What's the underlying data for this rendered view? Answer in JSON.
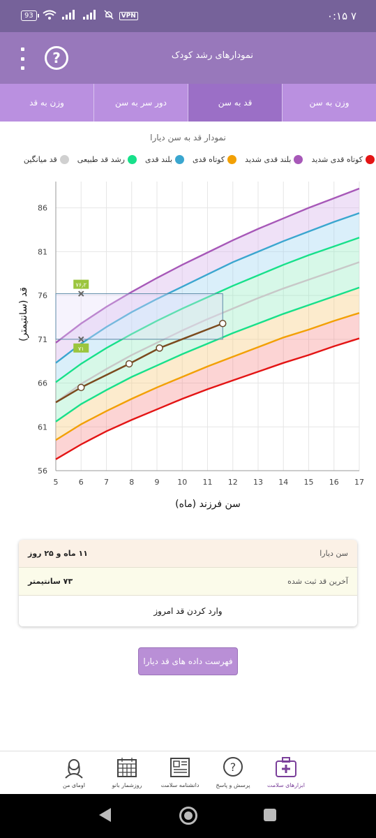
{
  "statusbar": {
    "time": "۷ ۰:۱۵",
    "battery": "93",
    "vpn": "VPN"
  },
  "appbar": {
    "title": "نمودارهای رشد کودک",
    "help_label": "?"
  },
  "tabs": [
    {
      "label": "وزن به سن"
    },
    {
      "label": "قد به سن"
    },
    {
      "label": "دور سر به سن"
    },
    {
      "label": "وزن به قد"
    }
  ],
  "chart_title": "نمودار قد به سن دیارا",
  "legend": [
    {
      "label": "کوتاه قدی شدید",
      "color": "#e31414"
    },
    {
      "label": "بلند قدی شدید",
      "color": "#a758b8"
    },
    {
      "label": "کوتاه قدی",
      "color": "#f2a004"
    },
    {
      "label": "بلند قدی",
      "color": "#3aa6cf"
    },
    {
      "label": "رشد قد طبیعی",
      "color": "#17e08a"
    },
    {
      "label": "قد میانگین",
      "color": "#d0d0d0"
    }
  ],
  "chart_data": {
    "type": "line",
    "title": "نمودار قد به سن دیارا",
    "xlabel": "سن فرزند (ماه)",
    "ylabel": "قد (سانتیمتر)",
    "xlim": [
      5,
      17
    ],
    "ylim": [
      56,
      89
    ],
    "x_ticks": [
      "5",
      "6",
      "7",
      "8",
      "9",
      "10",
      "11",
      "12",
      "13",
      "14",
      "15",
      "16",
      "17"
    ],
    "y_ticks": [
      "56",
      "61",
      "66",
      "71",
      "76",
      "81",
      "86"
    ],
    "grid": true,
    "series": [
      {
        "name": "کوتاه قدی شدید",
        "color": "#e31414",
        "x": [
          5,
          6,
          7,
          8,
          9,
          10,
          11,
          12,
          13,
          14,
          15,
          16,
          17
        ],
        "y": [
          57.3,
          59.0,
          60.5,
          61.8,
          63.0,
          64.2,
          65.3,
          66.3,
          67.3,
          68.3,
          69.2,
          70.2,
          71.1
        ]
      },
      {
        "name": "کوتاه قدی",
        "color": "#f2a004",
        "x": [
          5,
          6,
          7,
          8,
          9,
          10,
          11,
          12,
          13,
          14,
          15,
          16,
          17
        ],
        "y": [
          59.5,
          61.3,
          62.8,
          64.2,
          65.5,
          66.7,
          67.9,
          69.0,
          70.1,
          71.2,
          72.1,
          73.1,
          74.0
        ]
      },
      {
        "name": "رشد قد طبیعی",
        "color": "#17e08a",
        "x": [
          5,
          6,
          7,
          8,
          9,
          10,
          11,
          12,
          13,
          14,
          15,
          16,
          17
        ],
        "y": [
          61.6,
          63.6,
          65.2,
          66.7,
          68.0,
          69.3,
          70.5,
          71.7,
          72.8,
          73.9,
          74.9,
          75.9,
          76.9
        ]
      },
      {
        "name": "قد میانگین",
        "color": "#c8c8c8",
        "x": [
          5,
          6,
          7,
          8,
          9,
          10,
          11,
          12,
          13,
          14,
          15,
          16,
          17
        ],
        "y": [
          63.8,
          65.9,
          67.6,
          69.2,
          70.6,
          72.0,
          73.3,
          74.5,
          75.7,
          76.8,
          77.8,
          78.8,
          79.8
        ]
      },
      {
        "name": "رشد قد طبیعی",
        "color": "#17e08a",
        "x": [
          5,
          6,
          7,
          8,
          9,
          10,
          11,
          12,
          13,
          14,
          15,
          16,
          17
        ],
        "y": [
          66.1,
          68.2,
          70.0,
          71.6,
          73.1,
          74.5,
          75.8,
          77.1,
          78.3,
          79.5,
          80.6,
          81.6,
          82.6
        ]
      },
      {
        "name": "بلند قدی",
        "color": "#3aa6cf",
        "x": [
          5,
          6,
          7,
          8,
          9,
          10,
          11,
          12,
          13,
          14,
          15,
          16,
          17
        ],
        "y": [
          68.3,
          70.5,
          72.4,
          74.1,
          75.6,
          77.0,
          78.4,
          79.8,
          81.0,
          82.2,
          83.3,
          84.4,
          85.4
        ]
      },
      {
        "name": "بلند قدی شدید",
        "color": "#a758b8",
        "x": [
          5,
          6,
          7,
          8,
          9,
          10,
          11,
          12,
          13,
          14,
          15,
          16,
          17
        ],
        "y": [
          70.6,
          72.8,
          74.7,
          76.4,
          78.0,
          79.5,
          80.9,
          82.3,
          83.6,
          84.8,
          86.0,
          87.1,
          88.2
        ]
      },
      {
        "name": "دیارا",
        "color": "#7b4a1e",
        "x": [
          5,
          6,
          7.9,
          9.1,
          11.6
        ],
        "y": [
          63.8,
          65.5,
          68.2,
          70.0,
          72.8
        ]
      }
    ],
    "highlight": {
      "x_from": 5,
      "x_to": 11.6,
      "y_from": 71,
      "y_to": 76.2
    },
    "markers": [
      {
        "x": 6,
        "y": 76.2,
        "label": "۷۶٫۲"
      },
      {
        "x": 6,
        "y": 71,
        "label": "۷۱"
      }
    ]
  },
  "card": {
    "age_label": "سن دیارا",
    "age_value": "۱۱ ماه و ۲۵ روز",
    "last_label": "آخرین قد ثبت شده",
    "last_value": "۷۳ سانتیمتر",
    "enter_label": "وارد کردن قد امروز"
  },
  "list_button": "فهرست داده های قد دیارا",
  "bottom_nav": [
    {
      "label": "ابزارهای سلامت",
      "icon": "health-kit-icon"
    },
    {
      "label": "پرسش و پاسخ",
      "icon": "question-bubble-icon"
    },
    {
      "label": "دانشنامه سلامت",
      "icon": "newspaper-icon"
    },
    {
      "label": "روزشمار بانو",
      "icon": "calendar-icon"
    },
    {
      "label": "اومای من",
      "icon": "woman-avatar-icon"
    }
  ]
}
